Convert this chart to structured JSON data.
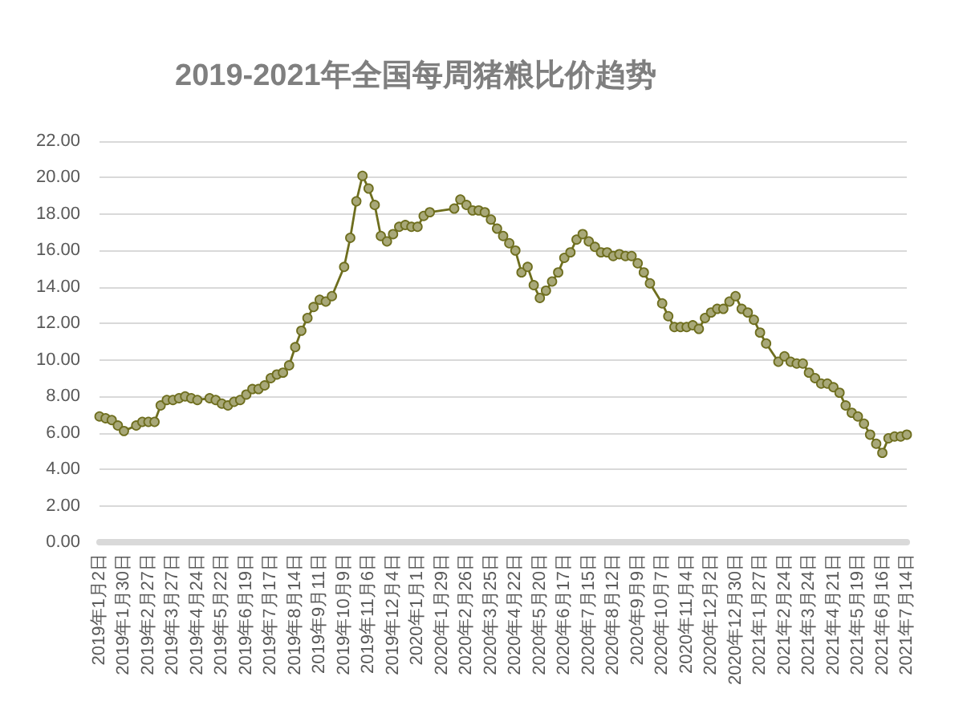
{
  "chart_data": {
    "type": "line",
    "title": "2019-2021年全国每周猪粮比价趋势",
    "x": [
      "2019-01-02",
      "2019-01-09",
      "2019-01-16",
      "2019-01-23",
      "2019-01-30",
      "2019-02-13",
      "2019-02-20",
      "2019-02-27",
      "2019-03-06",
      "2019-03-13",
      "2019-03-20",
      "2019-03-27",
      "2019-04-03",
      "2019-04-10",
      "2019-04-17",
      "2019-04-24",
      "2019-05-08",
      "2019-05-15",
      "2019-05-22",
      "2019-05-29",
      "2019-06-05",
      "2019-06-12",
      "2019-06-19",
      "2019-06-26",
      "2019-07-03",
      "2019-07-10",
      "2019-07-17",
      "2019-07-24",
      "2019-07-31",
      "2019-08-07",
      "2019-08-14",
      "2019-08-21",
      "2019-08-28",
      "2019-09-04",
      "2019-09-11",
      "2019-09-18",
      "2019-09-25",
      "2019-10-09",
      "2019-10-16",
      "2019-10-23",
      "2019-10-30",
      "2019-11-06",
      "2019-11-13",
      "2019-11-20",
      "2019-11-27",
      "2019-12-04",
      "2019-12-11",
      "2019-12-18",
      "2019-12-25",
      "2020-01-01",
      "2020-01-08",
      "2020-01-15",
      "2020-02-12",
      "2020-02-19",
      "2020-02-26",
      "2020-03-04",
      "2020-03-11",
      "2020-03-18",
      "2020-03-25",
      "2020-04-01",
      "2020-04-08",
      "2020-04-15",
      "2020-04-22",
      "2020-04-29",
      "2020-05-06",
      "2020-05-13",
      "2020-05-20",
      "2020-05-27",
      "2020-06-03",
      "2020-06-10",
      "2020-06-17",
      "2020-06-24",
      "2020-07-01",
      "2020-07-08",
      "2020-07-15",
      "2020-07-22",
      "2020-07-29",
      "2020-08-05",
      "2020-08-12",
      "2020-08-19",
      "2020-08-26",
      "2020-09-02",
      "2020-09-09",
      "2020-09-16",
      "2020-09-23",
      "2020-10-07",
      "2020-10-14",
      "2020-10-21",
      "2020-10-28",
      "2020-11-04",
      "2020-11-11",
      "2020-11-18",
      "2020-11-25",
      "2020-12-02",
      "2020-12-09",
      "2020-12-16",
      "2020-12-23",
      "2020-12-30",
      "2021-01-06",
      "2021-01-13",
      "2021-01-20",
      "2021-01-27",
      "2021-02-03",
      "2021-02-17",
      "2021-02-24",
      "2021-03-03",
      "2021-03-10",
      "2021-03-17",
      "2021-03-24",
      "2021-03-31",
      "2021-04-07",
      "2021-04-14",
      "2021-04-21",
      "2021-04-28",
      "2021-05-05",
      "2021-05-12",
      "2021-05-19",
      "2021-05-26",
      "2021-06-02",
      "2021-06-09",
      "2021-06-16",
      "2021-06-23",
      "2021-06-30",
      "2021-07-07",
      "2021-07-14"
    ],
    "values": [
      6.9,
      6.8,
      6.7,
      6.4,
      6.1,
      6.4,
      6.6,
      6.6,
      6.6,
      7.5,
      7.8,
      7.8,
      7.9,
      8.0,
      7.9,
      7.8,
      7.9,
      7.8,
      7.6,
      7.5,
      7.7,
      7.8,
      8.1,
      8.4,
      8.4,
      8.6,
      9.0,
      9.2,
      9.3,
      9.7,
      10.7,
      11.6,
      12.3,
      12.9,
      13.3,
      13.2,
      13.5,
      15.1,
      16.7,
      18.7,
      20.1,
      19.4,
      18.5,
      16.8,
      16.5,
      16.9,
      17.3,
      17.4,
      17.3,
      17.3,
      17.9,
      18.1,
      18.3,
      18.8,
      18.5,
      18.2,
      18.2,
      18.1,
      17.7,
      17.2,
      16.8,
      16.4,
      16.0,
      14.8,
      15.1,
      14.1,
      13.4,
      13.8,
      14.3,
      14.8,
      15.6,
      15.9,
      16.6,
      16.9,
      16.5,
      16.2,
      15.9,
      15.9,
      15.7,
      15.8,
      15.7,
      15.7,
      15.3,
      14.8,
      14.2,
      13.1,
      12.4,
      11.8,
      11.8,
      11.8,
      11.9,
      11.7,
      12.3,
      12.6,
      12.8,
      12.8,
      13.2,
      13.5,
      12.8,
      12.6,
      12.2,
      11.5,
      10.9,
      9.9,
      10.2,
      9.9,
      9.8,
      9.8,
      9.3,
      9.0,
      8.7,
      8.7,
      8.5,
      8.2,
      7.5,
      7.1,
      6.9,
      6.5,
      5.9,
      5.4,
      4.9,
      5.7,
      5.8,
      5.8,
      5.9
    ],
    "color": "#6e6e1e",
    "xlim": [
      "2019-01-02",
      "2021-07-14"
    ],
    "xticks": [
      {
        "value": "2019-01-02",
        "label": "2019年1月2日"
      },
      {
        "value": "2019-01-30",
        "label": "2019年1月30日"
      },
      {
        "value": "2019-02-27",
        "label": "2019年2月27日"
      },
      {
        "value": "2019-03-27",
        "label": "2019年3月27日"
      },
      {
        "value": "2019-04-24",
        "label": "2019年4月24日"
      },
      {
        "value": "2019-05-22",
        "label": "2019年5月22日"
      },
      {
        "value": "2019-06-19",
        "label": "2019年6月19日"
      },
      {
        "value": "2019-07-17",
        "label": "2019年7月17日"
      },
      {
        "value": "2019-08-14",
        "label": "2019年8月14日"
      },
      {
        "value": "2019-09-11",
        "label": "2019年9月11日"
      },
      {
        "value": "2019-10-09",
        "label": "2019年10月9日"
      },
      {
        "value": "2019-11-06",
        "label": "2019年11月6日"
      },
      {
        "value": "2019-12-04",
        "label": "2019年12月4日"
      },
      {
        "value": "2020-01-01",
        "label": "2020年1月1日"
      },
      {
        "value": "2020-01-29",
        "label": "2020年1月29日"
      },
      {
        "value": "2020-02-26",
        "label": "2020年2月26日"
      },
      {
        "value": "2020-03-25",
        "label": "2020年3月25日"
      },
      {
        "value": "2020-04-22",
        "label": "2020年4月22日"
      },
      {
        "value": "2020-05-20",
        "label": "2020年5月20日"
      },
      {
        "value": "2020-06-17",
        "label": "2020年6月17日"
      },
      {
        "value": "2020-07-15",
        "label": "2020年7月15日"
      },
      {
        "value": "2020-08-12",
        "label": "2020年8月12日"
      },
      {
        "value": "2020-09-09",
        "label": "2020年9月9日"
      },
      {
        "value": "2020-10-07",
        "label": "2020年10月7日"
      },
      {
        "value": "2020-11-04",
        "label": "2020年11月4日"
      },
      {
        "value": "2020-12-02",
        "label": "2020年12月2日"
      },
      {
        "value": "2020-12-30",
        "label": "2020年12月30日"
      },
      {
        "value": "2021-01-27",
        "label": "2021年1月27日"
      },
      {
        "value": "2021-02-24",
        "label": "2021年2月24日"
      },
      {
        "value": "2021-03-24",
        "label": "2021年3月24日"
      },
      {
        "value": "2021-04-21",
        "label": "2021年4月21日"
      },
      {
        "value": "2021-05-19",
        "label": "2021年5月19日"
      },
      {
        "value": "2021-06-16",
        "label": "2021年6月16日"
      },
      {
        "value": "2021-07-14",
        "label": "2021年7月14日"
      }
    ],
    "ylim": [
      0,
      22
    ],
    "yticks": [
      {
        "value": 0,
        "label": "0.00"
      },
      {
        "value": 2,
        "label": "2.00"
      },
      {
        "value": 4,
        "label": "4.00"
      },
      {
        "value": 6,
        "label": "6.00"
      },
      {
        "value": 8,
        "label": "8.00"
      },
      {
        "value": 10,
        "label": "10.00"
      },
      {
        "value": 12,
        "label": "12.00"
      },
      {
        "value": 14,
        "label": "14.00"
      },
      {
        "value": 16,
        "label": "16.00"
      },
      {
        "value": 18,
        "label": "18.00"
      },
      {
        "value": 20,
        "label": "20.00"
      },
      {
        "value": 22,
        "label": "22.00"
      }
    ],
    "grid": "y",
    "marker": "circle",
    "line_style": "solid"
  }
}
